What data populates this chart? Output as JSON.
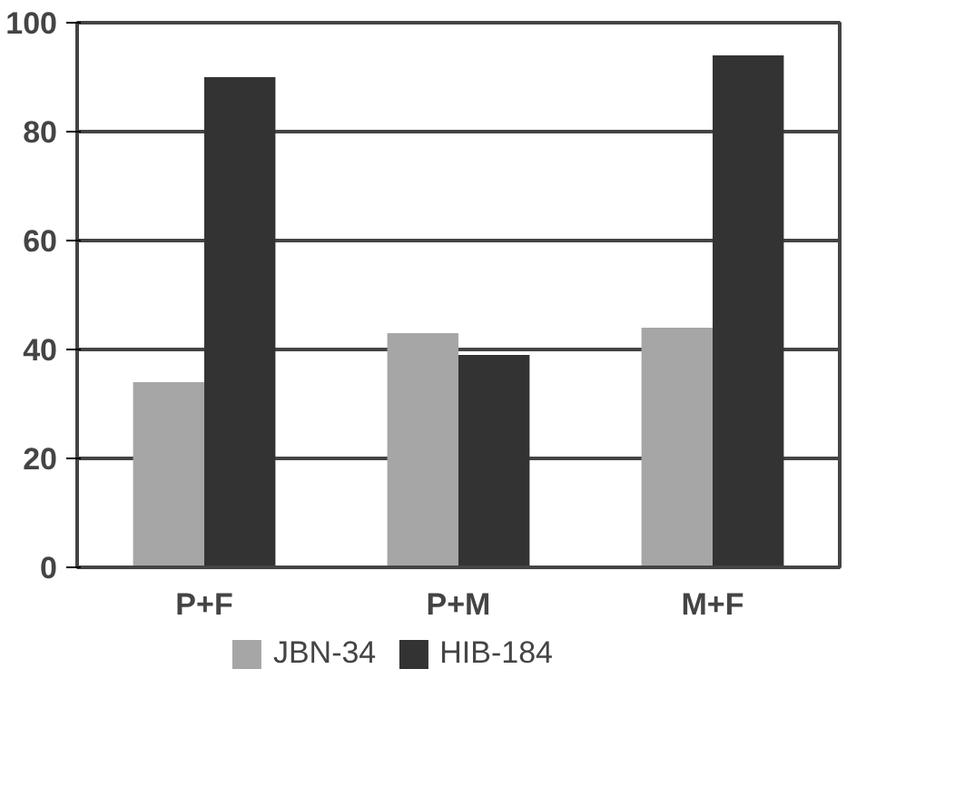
{
  "chart_data": {
    "type": "bar",
    "categories": [
      "P+F",
      "P+M",
      "M+F"
    ],
    "series": [
      {
        "name": "JBN-34",
        "color": "#a6a6a6",
        "values": [
          34,
          43,
          44
        ]
      },
      {
        "name": "HIB-184",
        "color": "#333333",
        "values": [
          90,
          39,
          94
        ]
      }
    ],
    "ylim": [
      0,
      100
    ],
    "yticks": [
      0,
      20,
      40,
      60,
      80,
      100
    ],
    "grid": "y",
    "legend": "bottom"
  }
}
